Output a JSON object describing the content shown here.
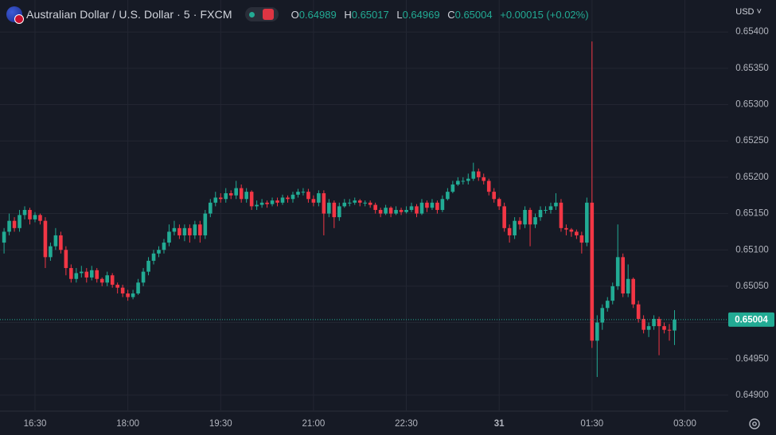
{
  "chart_data": {
    "type": "candlestick",
    "title": "Australian Dollar / U.S. Dollar · 5 · FXCM",
    "currency": "USD",
    "ohlc_labels": [
      "O",
      "H",
      "L",
      "C"
    ],
    "change": "+0.00015 (+0.02%)",
    "up_color": "#22ab94",
    "down_color": "#f23645",
    "grid": true,
    "x": [
      "16:00",
      "16:05",
      "16:10",
      "16:15",
      "16:20",
      "16:25",
      "16:30",
      "16:35",
      "16:40",
      "16:45",
      "16:50",
      "16:55",
      "17:00",
      "17:05",
      "17:10",
      "17:15",
      "17:20",
      "17:25",
      "17:30",
      "17:35",
      "17:40",
      "17:45",
      "17:50",
      "17:55",
      "18:00",
      "18:05",
      "18:10",
      "18:15",
      "18:20",
      "18:25",
      "18:30",
      "18:35",
      "18:40",
      "18:45",
      "18:50",
      "18:55",
      "19:00",
      "19:05",
      "19:10",
      "19:15",
      "19:20",
      "19:25",
      "19:30",
      "19:35",
      "19:40",
      "19:45",
      "19:50",
      "19:55",
      "20:00",
      "20:05",
      "20:10",
      "20:15",
      "20:20",
      "20:25",
      "20:30",
      "20:35",
      "20:40",
      "20:45",
      "20:50",
      "20:55",
      "21:00",
      "21:05",
      "21:10",
      "21:15",
      "21:20",
      "21:25",
      "21:30",
      "21:35",
      "21:40",
      "21:45",
      "21:50",
      "21:55",
      "22:00",
      "22:05",
      "22:10",
      "22:15",
      "22:20",
      "22:25",
      "22:30",
      "22:35",
      "22:40",
      "22:45",
      "22:50",
      "22:55",
      "23:00",
      "23:05",
      "23:10",
      "23:15",
      "23:20",
      "23:25",
      "23:30",
      "23:35",
      "23:40",
      "23:45",
      "23:50",
      "23:55",
      "00:00",
      "00:05",
      "00:10",
      "00:15",
      "00:20",
      "00:25",
      "00:30",
      "00:35",
      "00:40",
      "00:45",
      "00:50",
      "00:55",
      "01:00",
      "01:05",
      "01:10",
      "01:15",
      "01:20",
      "01:25",
      "01:30",
      "01:35",
      "01:40",
      "01:45",
      "01:50",
      "01:55",
      "02:00",
      "02:05",
      "02:10",
      "02:15",
      "02:20",
      "02:25",
      "02:30",
      "02:35",
      "02:40",
      "02:45",
      "02:50"
    ],
    "open": [
      0.6511,
      0.65125,
      0.6514,
      0.6513,
      0.65148,
      0.65155,
      0.65142,
      0.65148,
      0.6514,
      0.6509,
      0.65105,
      0.6512,
      0.651,
      0.65075,
      0.6506,
      0.65068,
      0.6507,
      0.65062,
      0.65072,
      0.6506,
      0.65055,
      0.65065,
      0.65052,
      0.65048,
      0.6504,
      0.65035,
      0.6504,
      0.65055,
      0.6507,
      0.65085,
      0.65095,
      0.651,
      0.6511,
      0.65125,
      0.6513,
      0.6512,
      0.6513,
      0.6512,
      0.65135,
      0.6512,
      0.6515,
      0.65165,
      0.65172,
      0.6517,
      0.65178,
      0.65175,
      0.65185,
      0.6517,
      0.6518,
      0.6516,
      0.65162,
      0.65165,
      0.65163,
      0.65168,
      0.65165,
      0.65172,
      0.6517,
      0.65176,
      0.6518,
      0.6518,
      0.6517,
      0.65165,
      0.65178,
      0.6515,
      0.65165,
      0.65145,
      0.6516,
      0.65165,
      0.65165,
      0.65168,
      0.65165,
      0.65165,
      0.65162,
      0.65155,
      0.6515,
      0.65158,
      0.6515,
      0.65155,
      0.65152,
      0.65155,
      0.6516,
      0.6515,
      0.65165,
      0.65158,
      0.65165,
      0.65155,
      0.6517,
      0.6518,
      0.6519,
      0.65195,
      0.65195,
      0.65198,
      0.65208,
      0.652,
      0.65195,
      0.6518,
      0.6517,
      0.6516,
      0.6513,
      0.6512,
      0.6514,
      0.65135,
      0.65155,
      0.65135,
      0.65145,
      0.65155,
      0.65155,
      0.6516,
      0.65165,
      0.6513,
      0.65128,
      0.65125,
      0.6512,
      0.6511,
      0.65165,
      0.64975,
      0.65,
      0.6502,
      0.6503,
      0.6505,
      0.6509,
      0.6504,
      0.6506,
      0.65025,
      0.65005,
      0.6499,
      0.64995,
      0.65005,
      0.64995,
      0.6499,
      0.64989
    ],
    "high": [
      0.6513,
      0.6515,
      0.65145,
      0.65155,
      0.6516,
      0.65158,
      0.65152,
      0.6515,
      0.65145,
      0.6511,
      0.6513,
      0.65125,
      0.65105,
      0.6508,
      0.65075,
      0.65078,
      0.65075,
      0.65078,
      0.65075,
      0.65062,
      0.6507,
      0.65068,
      0.65055,
      0.65052,
      0.65045,
      0.65045,
      0.6506,
      0.65075,
      0.6509,
      0.651,
      0.65105,
      0.65115,
      0.65135,
      0.6514,
      0.65135,
      0.65135,
      0.65135,
      0.6514,
      0.6514,
      0.65155,
      0.6517,
      0.6518,
      0.65178,
      0.65185,
      0.65182,
      0.65195,
      0.6519,
      0.65185,
      0.65182,
      0.65168,
      0.6517,
      0.65168,
      0.65172,
      0.65172,
      0.65176,
      0.65175,
      0.6518,
      0.65184,
      0.65185,
      0.65184,
      0.65175,
      0.65182,
      0.65182,
      0.6517,
      0.65168,
      0.65165,
      0.6517,
      0.6517,
      0.65172,
      0.6517,
      0.65168,
      0.65168,
      0.65165,
      0.65158,
      0.65162,
      0.6516,
      0.6516,
      0.65158,
      0.6516,
      0.65165,
      0.65163,
      0.6517,
      0.65168,
      0.6517,
      0.65168,
      0.65175,
      0.65185,
      0.65195,
      0.652,
      0.652,
      0.65205,
      0.6522,
      0.65212,
      0.65205,
      0.65198,
      0.65185,
      0.65172,
      0.65165,
      0.65135,
      0.65145,
      0.65145,
      0.6516,
      0.65158,
      0.6515,
      0.6516,
      0.6516,
      0.65165,
      0.65178,
      0.6517,
      0.65135,
      0.6513,
      0.65128,
      0.65125,
      0.65172,
      0.65387,
      0.6501,
      0.65025,
      0.65035,
      0.65055,
      0.65135,
      0.65095,
      0.6508,
      0.65062,
      0.6503,
      0.6501,
      0.65,
      0.6501,
      0.65008,
      0.65,
      0.64998,
      0.65017
    ],
    "low": [
      0.65095,
      0.6512,
      0.65125,
      0.65125,
      0.65142,
      0.65135,
      0.65138,
      0.65135,
      0.65075,
      0.65085,
      0.651,
      0.65095,
      0.65065,
      0.65055,
      0.65055,
      0.65062,
      0.65055,
      0.65058,
      0.65055,
      0.6505,
      0.6505,
      0.65048,
      0.6504,
      0.65035,
      0.6503,
      0.65032,
      0.65038,
      0.6505,
      0.65065,
      0.6508,
      0.6509,
      0.65095,
      0.65105,
      0.6512,
      0.65115,
      0.65112,
      0.6511,
      0.65115,
      0.6511,
      0.65115,
      0.65145,
      0.6516,
      0.65165,
      0.65165,
      0.6517,
      0.6517,
      0.65165,
      0.65165,
      0.65155,
      0.65155,
      0.65158,
      0.65158,
      0.6516,
      0.6516,
      0.65162,
      0.65165,
      0.65165,
      0.65172,
      0.65175,
      0.65165,
      0.6516,
      0.6516,
      0.6512,
      0.65145,
      0.6513,
      0.6514,
      0.65158,
      0.6516,
      0.65162,
      0.6516,
      0.6516,
      0.65158,
      0.6515,
      0.65145,
      0.65148,
      0.65145,
      0.65148,
      0.65148,
      0.6515,
      0.65152,
      0.65145,
      0.65148,
      0.65152,
      0.65155,
      0.6515,
      0.65152,
      0.65168,
      0.65178,
      0.65188,
      0.6519,
      0.6519,
      0.65195,
      0.65195,
      0.6519,
      0.65175,
      0.65165,
      0.65155,
      0.65125,
      0.6511,
      0.65115,
      0.65128,
      0.6513,
      0.65105,
      0.6513,
      0.6514,
      0.6515,
      0.6515,
      0.65155,
      0.65125,
      0.6512,
      0.65118,
      0.65115,
      0.65095,
      0.65105,
      0.64965,
      0.64925,
      0.6499,
      0.65015,
      0.65025,
      0.65045,
      0.65035,
      0.65035,
      0.6502,
      0.65,
      0.64985,
      0.6498,
      0.6499,
      0.64955,
      0.64985,
      0.64975,
      0.64969
    ],
    "close": [
      0.65125,
      0.6514,
      0.6513,
      0.65148,
      0.65155,
      0.65142,
      0.65148,
      0.6514,
      0.6509,
      0.65105,
      0.6512,
      0.651,
      0.65075,
      0.6506,
      0.65068,
      0.6507,
      0.65062,
      0.65072,
      0.6506,
      0.65055,
      0.65065,
      0.65052,
      0.65048,
      0.6504,
      0.65035,
      0.6504,
      0.65055,
      0.6507,
      0.65085,
      0.65095,
      0.651,
      0.6511,
      0.65125,
      0.6513,
      0.6512,
      0.6513,
      0.6512,
      0.65135,
      0.6512,
      0.6515,
      0.65165,
      0.65172,
      0.6517,
      0.65178,
      0.65175,
      0.65185,
      0.6517,
      0.6518,
      0.6516,
      0.65162,
      0.65165,
      0.65163,
      0.65168,
      0.65165,
      0.65172,
      0.6517,
      0.65176,
      0.6518,
      0.6518,
      0.6517,
      0.65165,
      0.65178,
      0.6515,
      0.65165,
      0.65145,
      0.6516,
      0.65165,
      0.65165,
      0.65168,
      0.65165,
      0.65165,
      0.65162,
      0.65155,
      0.6515,
      0.65158,
      0.6515,
      0.65155,
      0.65152,
      0.65155,
      0.6516,
      0.6515,
      0.65165,
      0.65158,
      0.65165,
      0.65155,
      0.6517,
      0.6518,
      0.6519,
      0.65195,
      0.65195,
      0.65198,
      0.65208,
      0.652,
      0.65195,
      0.6518,
      0.6517,
      0.6516,
      0.6513,
      0.6512,
      0.6514,
      0.65135,
      0.65155,
      0.65135,
      0.65145,
      0.65155,
      0.65155,
      0.6516,
      0.65165,
      0.6513,
      0.65128,
      0.65125,
      0.6512,
      0.6511,
      0.65165,
      0.64975,
      0.65,
      0.6502,
      0.6503,
      0.6505,
      0.6509,
      0.6504,
      0.6506,
      0.65025,
      0.65005,
      0.6499,
      0.64995,
      0.65005,
      0.64995,
      0.6499,
      0.64989,
      0.65004
    ],
    "ylim": [
      0.64878,
      0.65444
    ],
    "yticks": [
      {
        "value": 0.654,
        "label": "0.65400"
      },
      {
        "value": 0.6535,
        "label": "0.65350"
      },
      {
        "value": 0.653,
        "label": "0.65300"
      },
      {
        "value": 0.6525,
        "label": "0.65250"
      },
      {
        "value": 0.652,
        "label": "0.65200"
      },
      {
        "value": 0.6515,
        "label": "0.65150"
      },
      {
        "value": 0.651,
        "label": "0.65100"
      },
      {
        "value": 0.6505,
        "label": "0.65050"
      },
      {
        "value": 0.65,
        "label": "0.65000"
      },
      {
        "value": 0.6495,
        "label": "0.64950"
      },
      {
        "value": 0.649,
        "label": "0.64900"
      }
    ],
    "xticks": [
      "16:30",
      "18:00",
      "19:30",
      "21:00",
      "22:30",
      {
        "value": "00:00",
        "label": "31"
      },
      "01:30",
      "03:00"
    ]
  }
}
